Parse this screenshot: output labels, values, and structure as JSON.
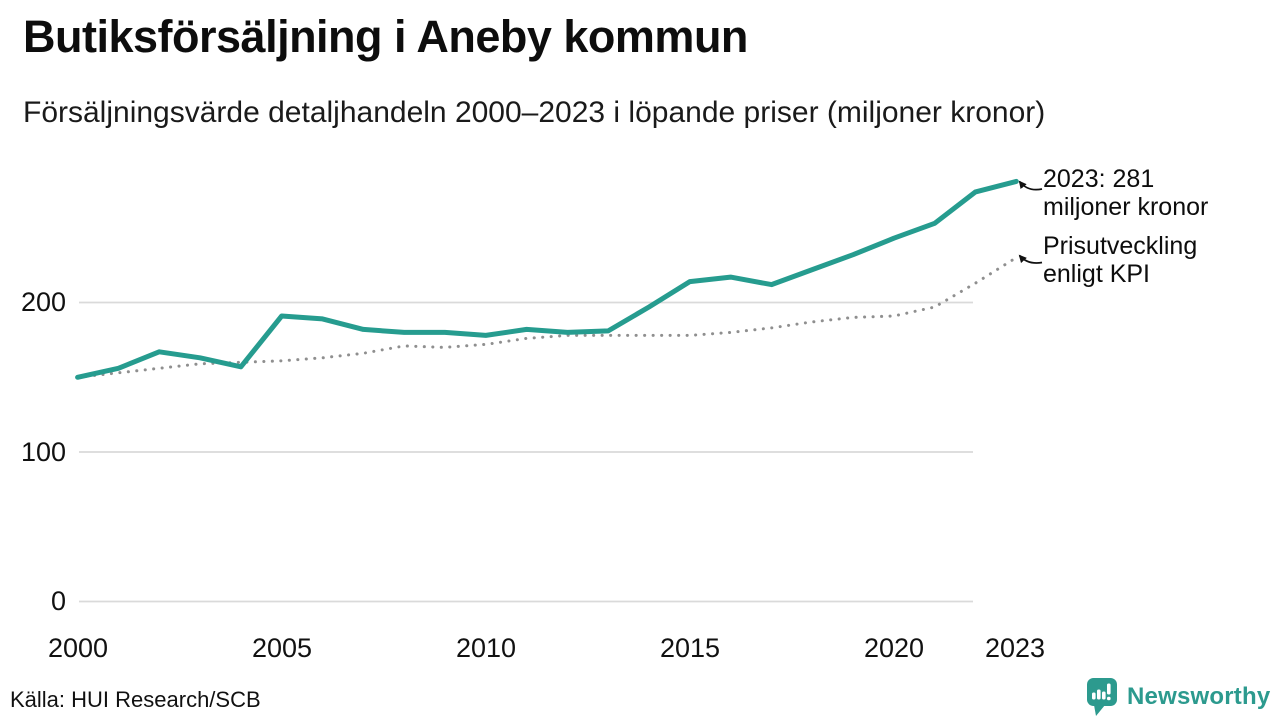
{
  "title": "Butiksförsäljning i Aneby kommun",
  "subtitle": "Försäljningsvärde detaljhandeln 2000–2023 i löpande priser (miljoner kronor)",
  "source": "Källa: HUI Research/SCB",
  "brand": {
    "name": "Newsworthy",
    "color": "#2c9a8e"
  },
  "colors": {
    "sales_line": "#269c8f",
    "kpi_dots": "#8f8f8f",
    "gridline": "#dadada",
    "text": "#111111"
  },
  "annotations": {
    "sales": {
      "lines": [
        "2023: 281",
        "miljoner kronor"
      ]
    },
    "kpi": {
      "lines": [
        "Prisutveckling",
        "enligt KPI"
      ]
    }
  },
  "chart_data": {
    "type": "line",
    "title": "Butiksförsäljning i Aneby kommun",
    "subtitle": "Försäljningsvärde detaljhandeln 2000–2023 i löpande priser (miljoner kronor)",
    "x": [
      2000,
      2001,
      2002,
      2003,
      2004,
      2005,
      2006,
      2007,
      2008,
      2009,
      2010,
      2011,
      2012,
      2013,
      2014,
      2015,
      2016,
      2017,
      2018,
      2019,
      2020,
      2021,
      2022,
      2023
    ],
    "series": [
      {
        "name": "Butiksförsäljning, löpande priser (miljoner kronor)",
        "style": "solid",
        "color": "#269c8f",
        "values": [
          150,
          156,
          167,
          163,
          157,
          191,
          189,
          182,
          180,
          180,
          178,
          182,
          180,
          181,
          197,
          214,
          217,
          212,
          222,
          232,
          243,
          253,
          274,
          281
        ]
      },
      {
        "name": "Prisutveckling enligt KPI",
        "style": "dotted",
        "color": "#8f8f8f",
        "values": [
          150,
          153,
          156,
          159,
          160,
          161,
          163,
          166,
          171,
          170,
          172,
          176,
          178,
          178,
          178,
          178,
          180,
          183,
          187,
          190,
          191,
          197,
          213,
          230
        ]
      }
    ],
    "x_ticks": [
      "2000",
      "2005",
      "2010",
      "2015",
      "2020",
      "2023"
    ],
    "y_ticks": [
      "200",
      "100",
      "0"
    ],
    "y_gridlines": [
      200,
      100,
      0
    ],
    "ylim": [
      0,
      290
    ],
    "xlim": [
      2000,
      2023
    ],
    "xlabel": "",
    "ylabel": "",
    "grid": "horizontal",
    "legend": "none",
    "annotation_last_value": "2023: 281 miljoner kronor"
  }
}
